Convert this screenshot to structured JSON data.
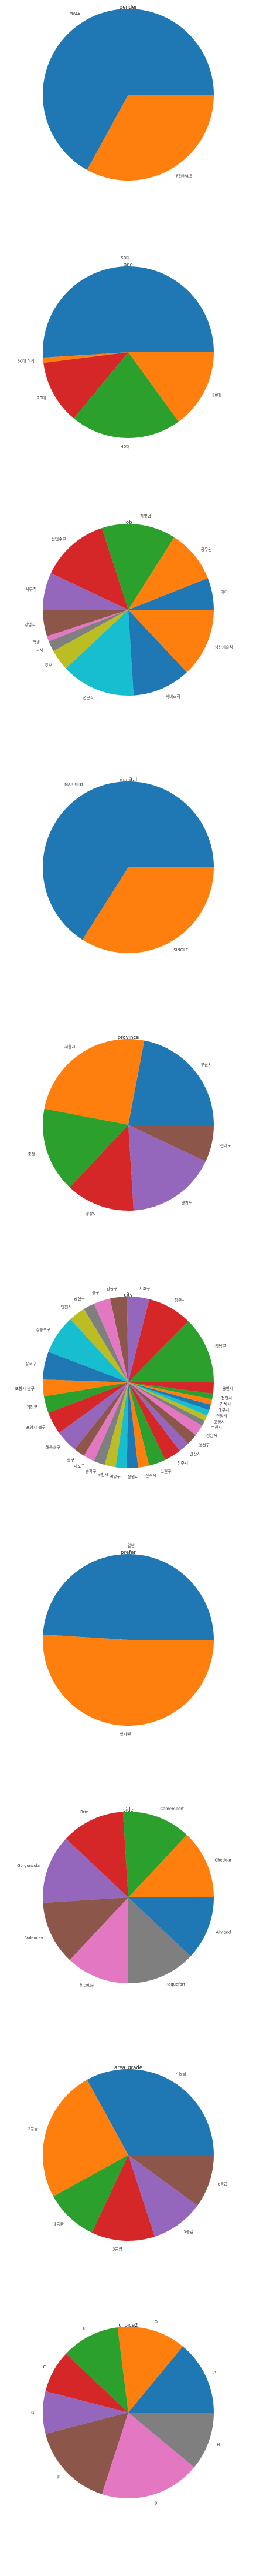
{
  "chart_data": [
    {
      "type": "pie",
      "title": "gender",
      "categories": [
        "MALE",
        "FEMALE"
      ],
      "values": [
        67,
        33
      ],
      "colors": [
        "#1f77b4",
        "#ff7f0e"
      ]
    },
    {
      "type": "pie",
      "title": "age",
      "categories": [
        "50대",
        "60대 이상",
        "20대",
        "40대",
        "30대"
      ],
      "values": [
        51,
        1,
        12,
        21,
        15
      ],
      "colors": [
        "#1f77b4",
        "#ff7f0e",
        "#d62728",
        "#2ca02c",
        "#ff7f0e"
      ]
    },
    {
      "type": "pie",
      "title": "job",
      "categories": [
        "기타",
        "공무원",
        "자영업",
        "전업주부",
        "사무직",
        "영업직",
        "학생",
        "교사",
        "주부",
        "전문직",
        "서비스직",
        "생산기술직"
      ],
      "values": [
        6,
        10,
        14,
        13,
        7,
        5,
        1,
        2,
        4,
        14,
        11,
        13
      ],
      "colors": [
        "#1f77b4",
        "#ff7f0e",
        "#2ca02c",
        "#d62728",
        "#9467bd",
        "#8c564b",
        "#e377c2",
        "#7f7f7f",
        "#bcbd22",
        "#17becf",
        "#1f77b4",
        "#ff7f0e"
      ]
    },
    {
      "type": "pie",
      "title": "marital",
      "categories": [
        "MARRIED",
        "SINGLE"
      ],
      "values": [
        66,
        34
      ],
      "colors": [
        "#1f77b4",
        "#ff7f0e"
      ]
    },
    {
      "type": "pie",
      "title": "province",
      "categories": [
        "부산시",
        "서울시",
        "충청도",
        "경상도",
        "경기도",
        "전라도"
      ],
      "values": [
        22,
        25,
        16,
        13,
        17,
        7
      ],
      "colors": [
        "#1f77b4",
        "#ff7f0e",
        "#2ca02c",
        "#d62728",
        "#9467bd",
        "#8c564b"
      ]
    },
    {
      "type": "pie",
      "title": "city",
      "categories": [
        "강남구",
        "청주시",
        "서초구",
        "강동구",
        "동구",
        "광진구",
        "인천시",
        "영등포구",
        "강서구",
        "포항시 남구",
        "기장군",
        "포항시 북구",
        "해운대구",
        "중구",
        "마포구",
        "송파구",
        "부천시",
        "계양구",
        "창원시",
        "진주시",
        "노원구",
        "전주시",
        "안산시",
        "양천구",
        "성남시",
        "수원시",
        "고양시",
        "안양시",
        "대구시",
        "김해시",
        "천안시",
        "용인시"
      ],
      "values": [
        12,
        8,
        4,
        3,
        3,
        2,
        3,
        7,
        5,
        3,
        3,
        4,
        4,
        2,
        2,
        2,
        2,
        2,
        2,
        2,
        3,
        3,
        2,
        2,
        2,
        1,
        1,
        1,
        1,
        1,
        1,
        2
      ],
      "colors": [
        "#2ca02c",
        "#d62728",
        "#9467bd",
        "#8c564b",
        "#e377c2",
        "#7f7f7f",
        "#bcbd22",
        "#17becf",
        "#1f77b4",
        "#ff7f0e",
        "#2ca02c",
        "#d62728",
        "#9467bd",
        "#8c564b",
        "#e377c2",
        "#7f7f7f",
        "#bcbd22",
        "#17becf",
        "#1f77b4",
        "#ff7f0e",
        "#2ca02c",
        "#d62728",
        "#9467bd",
        "#8c564b",
        "#e377c2",
        "#7f7f7f",
        "#bcbd22",
        "#17becf",
        "#1f77b4",
        "#ff7f0e",
        "#2ca02c",
        "#d62728"
      ]
    },
    {
      "type": "pie",
      "title": "prefer",
      "categories": [
        "일반",
        "알파벳"
      ],
      "values": [
        49,
        51
      ],
      "colors": [
        "#1f77b4",
        "#ff7f0e"
      ]
    },
    {
      "type": "pie",
      "title": "side",
      "categories": [
        "Cheddar",
        "Camembert",
        "Brie",
        "Gorgonzola",
        "Valencay",
        "Ricotta",
        "Roquefort",
        "Almond"
      ],
      "values": [
        13,
        13,
        12,
        13,
        12,
        12,
        13,
        12
      ],
      "colors": [
        "#ff7f0e",
        "#2ca02c",
        "#d62728",
        "#9467bd",
        "#8c564b",
        "#e377c2",
        "#7f7f7f",
        "#1f77b4"
      ]
    },
    {
      "type": "pie",
      "title": "area_grade",
      "categories": [
        "4등급",
        "2등급",
        "1등급",
        "3등급",
        "5등급",
        "6등급"
      ],
      "values": [
        33,
        25,
        10,
        12,
        10,
        10
      ],
      "colors": [
        "#1f77b4",
        "#ff7f0e",
        "#2ca02c",
        "#d62728",
        "#9467bd",
        "#8c564b"
      ]
    },
    {
      "type": "pie",
      "title": "choice2",
      "categories": [
        "A",
        "D",
        "E",
        "C",
        "G",
        "F",
        "B",
        "H"
      ],
      "values": [
        14,
        13,
        11,
        8,
        8,
        16,
        19,
        11
      ],
      "colors": [
        "#1f77b4",
        "#ff7f0e",
        "#2ca02c",
        "#d62728",
        "#9467bd",
        "#8c564b",
        "#e377c2",
        "#7f7f7f"
      ]
    }
  ]
}
